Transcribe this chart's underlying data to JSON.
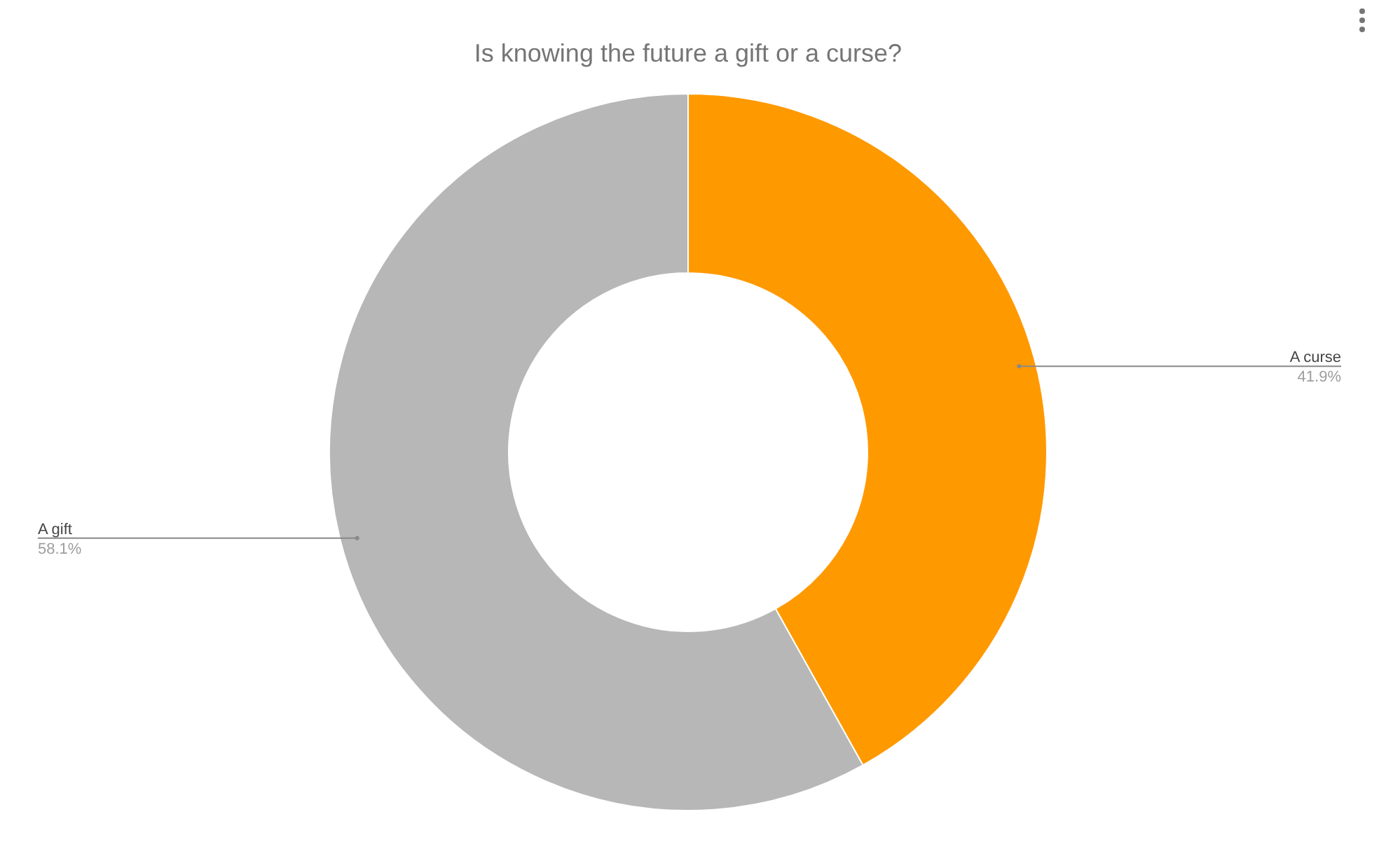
{
  "chart_data": {
    "type": "donut",
    "title": "Is knowing the future a gift or a curse?",
    "categories": [
      "A curse",
      "A gift"
    ],
    "values": [
      41.9,
      58.1
    ],
    "colors": [
      "#ff9900",
      "#b7b7b7"
    ],
    "value_labels": [
      "41.9%",
      "58.1%"
    ]
  }
}
